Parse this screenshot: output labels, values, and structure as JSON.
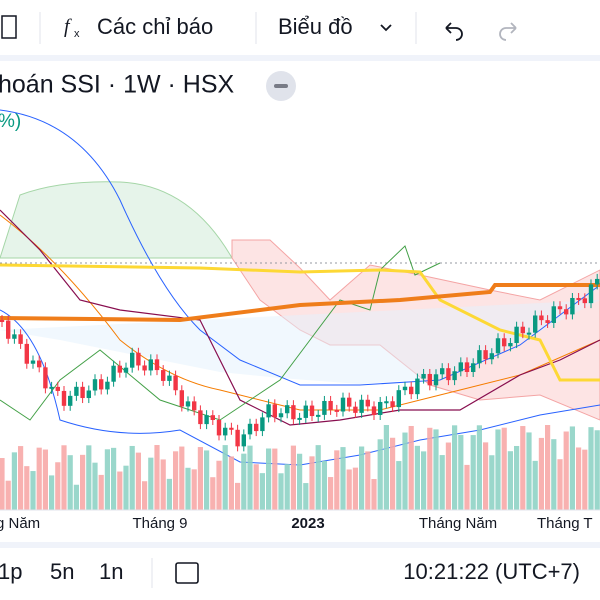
{
  "toolbar": {
    "indicators": "Các chỉ báo",
    "chart": "Biểu đồ"
  },
  "header": {
    "title": "hoán SSI · 1W · HSX",
    "legend_fragment": "%)"
  },
  "x_axis": {
    "labels": [
      "g Năm",
      "Tháng 9",
      "2023",
      "Tháng Năm",
      "Tháng T"
    ]
  },
  "bottom_bar": {
    "intervals": [
      "1p",
      "5n",
      "1n"
    ],
    "clock": "10:21:22 (UTC+7)"
  }
}
